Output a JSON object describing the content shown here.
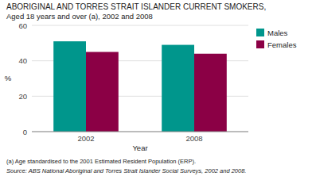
{
  "chart_data": {
    "type": "bar",
    "title": "ABORIGINAL AND TORRES STRAIT ISLANDER CURRENT SMOKERS,",
    "subtitle": "Aged 18 years and over (a), 2002 and 2008",
    "annotations": [
      "(a) Age standardised to the 2001 Estimated Resident Population (ERP).",
      "Source: ABS National Aboriginal and Torres Strait Islander Social Surveys, 2002 and 2008."
    ],
    "categories": [
      "2002",
      "2008"
    ],
    "series": [
      {
        "name": "Males",
        "color": "#00968C",
        "values": [
          51,
          49
        ]
      },
      {
        "name": "Females",
        "color": "#8B0045",
        "values": [
          45,
          44
        ]
      }
    ],
    "xlabel": "Year",
    "ylabel": "%",
    "ylim": [
      0,
      60
    ],
    "yticks": [
      0,
      20,
      40,
      60
    ],
    "grid": true,
    "legend": "upper right"
  }
}
